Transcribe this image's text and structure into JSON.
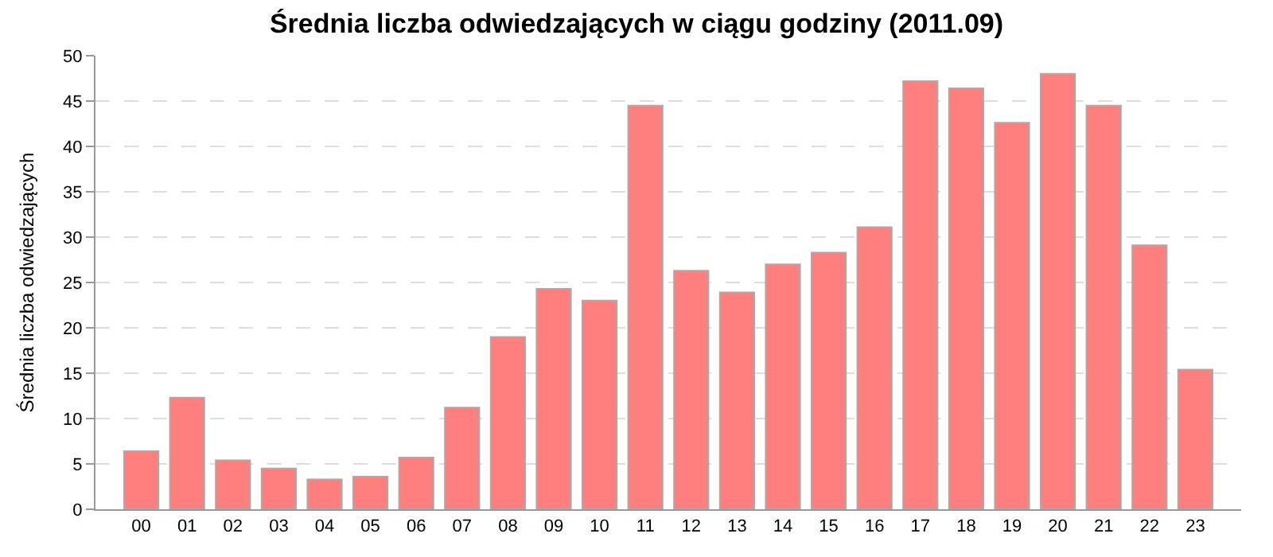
{
  "chart_data": {
    "type": "bar",
    "title": "Średnia liczba odwiedzających w ciągu godziny (2011.09)",
    "ylabel": "Średnia liczba odwiedzających",
    "categories": [
      "00",
      "01",
      "02",
      "03",
      "04",
      "05",
      "06",
      "07",
      "08",
      "09",
      "10",
      "11",
      "12",
      "13",
      "14",
      "15",
      "16",
      "17",
      "18",
      "19",
      "20",
      "21",
      "22",
      "23"
    ],
    "values": [
      6.4,
      12.3,
      5.4,
      4.5,
      3.3,
      3.6,
      5.7,
      11.2,
      19.0,
      24.3,
      23.0,
      44.5,
      26.3,
      23.9,
      27.0,
      28.3,
      31.1,
      47.2,
      46.4,
      42.6,
      48.0,
      44.5,
      29.1,
      15.4
    ],
    "color": "#ff7f7f",
    "ylim": [
      0,
      50
    ],
    "yticks": [
      0,
      5,
      10,
      15,
      20,
      25,
      30,
      35,
      40,
      45,
      50
    ],
    "grid": "y",
    "legend": false
  }
}
